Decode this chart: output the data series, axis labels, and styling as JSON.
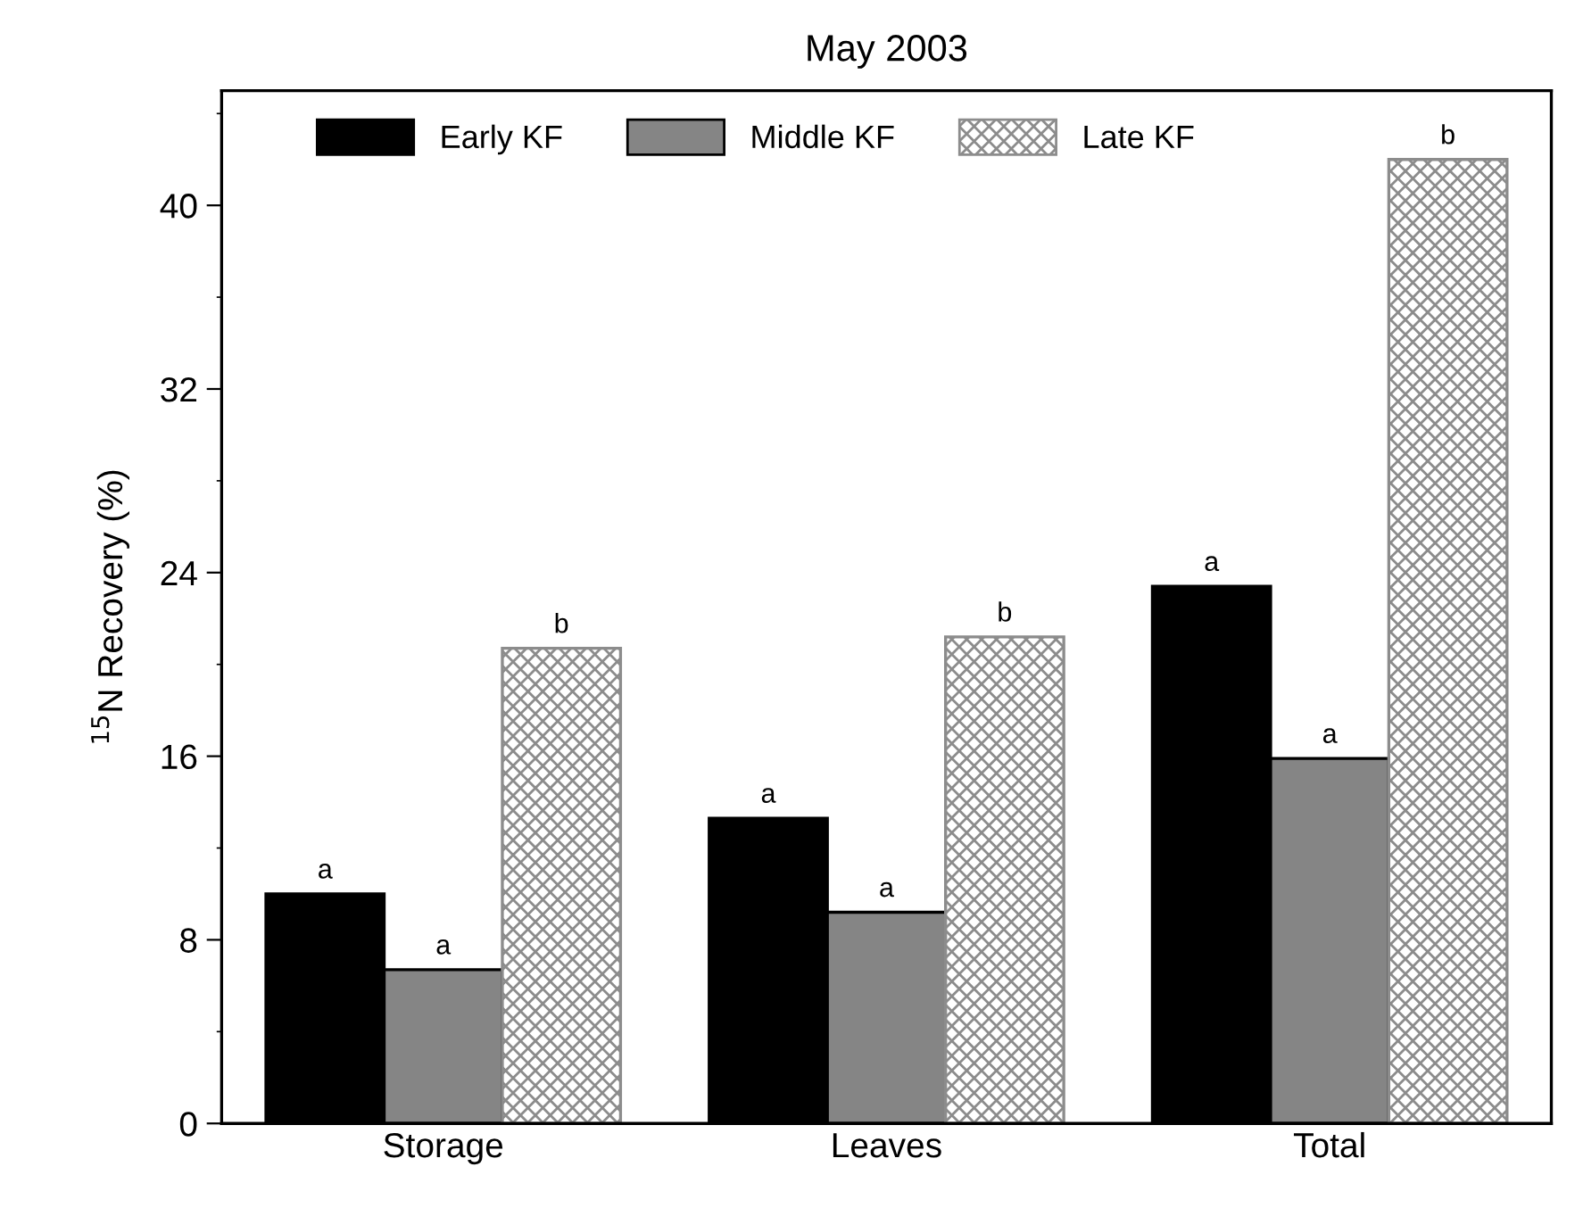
{
  "chart_data": {
    "type": "bar",
    "title": "May 2003",
    "ylabel": "$^{15}$N Recovery (%)",
    "categories": [
      "Storage",
      "Leaves",
      "Total"
    ],
    "series": [
      {
        "name": "Early KF",
        "color": "#000000",
        "values": [
          10.0,
          13.3,
          23.4
        ],
        "value_labels": [
          "a",
          "a",
          "a"
        ]
      },
      {
        "name": "Middle KF",
        "color": "#858585",
        "values": [
          6.7,
          9.2,
          15.9
        ],
        "value_labels": [
          "a",
          "a",
          "a"
        ]
      },
      {
        "name": "Late KF",
        "color": "#8c8c8c",
        "values": [
          20.7,
          21.2,
          42.0
        ],
        "value_labels": [
          "b",
          "b",
          "b"
        ]
      }
    ],
    "ylim": [
      0,
      45
    ],
    "yticks": [
      0,
      8,
      16,
      24,
      32,
      40
    ],
    "grid": false,
    "legend": "top left"
  }
}
